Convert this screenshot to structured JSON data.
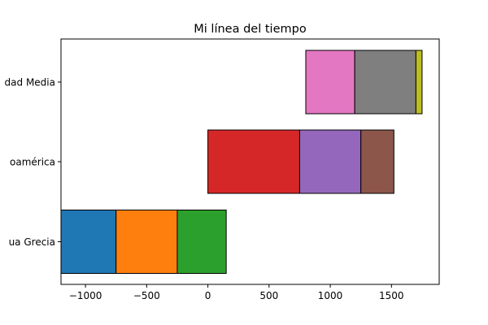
{
  "chart_data": {
    "type": "bar",
    "orientation": "horizontal",
    "stacked": true,
    "title": "Mi línea del tiempo",
    "xlabel": "",
    "ylabel": "",
    "xlim": [
      -1200,
      1890
    ],
    "xticks": [
      -1000,
      -500,
      0,
      500,
      1000,
      1500
    ],
    "xtick_labels": [
      "−1000",
      "−500",
      "0",
      "500",
      "1000",
      "1500"
    ],
    "categories": [
      "Antigua Grecia",
      "Mesoamérica",
      "Edad Media"
    ],
    "category_labels_visible": [
      "ua Grecia",
      "oamérica",
      "dad Media"
    ],
    "grid": false,
    "segments": [
      {
        "category": "Antigua Grecia",
        "start": -1200,
        "end": -750,
        "color": "#1f77b4"
      },
      {
        "category": "Antigua Grecia",
        "start": -750,
        "end": -250,
        "color": "#ff7f0e"
      },
      {
        "category": "Antigua Grecia",
        "start": -250,
        "end": 150,
        "color": "#2ca02c"
      },
      {
        "category": "Mesoamérica",
        "start": 0,
        "end": 750,
        "color": "#d62728"
      },
      {
        "category": "Mesoamérica",
        "start": 750,
        "end": 1250,
        "color": "#9467bd"
      },
      {
        "category": "Mesoamérica",
        "start": 1250,
        "end": 1520,
        "color": "#8c564b"
      },
      {
        "category": "Edad Media",
        "start": 800,
        "end": 1200,
        "color": "#e377c2"
      },
      {
        "category": "Edad Media",
        "start": 1200,
        "end": 1700,
        "color": "#7f7f7f"
      },
      {
        "category": "Edad Media",
        "start": 1700,
        "end": 1750,
        "color": "#bcbd22"
      }
    ]
  }
}
